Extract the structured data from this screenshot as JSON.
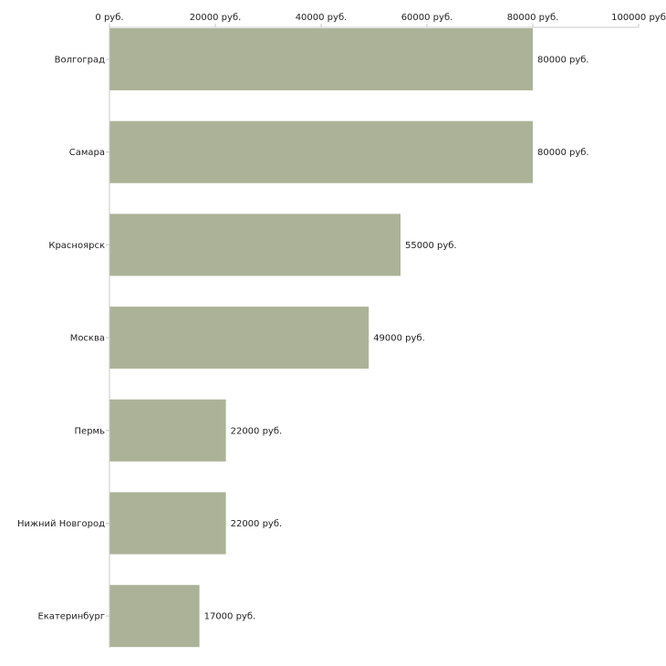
{
  "chart_data": {
    "type": "bar",
    "orientation": "horizontal",
    "categories": [
      "Волгоград",
      "Самара",
      "Красноярск",
      "Москва",
      "Пермь",
      "Нижний Новгород",
      "Екатеринбург"
    ],
    "values": [
      80000,
      80000,
      55000,
      49000,
      22000,
      22000,
      17000
    ],
    "value_labels": [
      "80000 руб.",
      "80000 руб.",
      "55000 руб.",
      "49000 руб.",
      "22000 руб.",
      "22000 руб.",
      "17000 руб."
    ],
    "x_ticks": [
      0,
      20000,
      40000,
      60000,
      80000,
      100000
    ],
    "x_tick_labels": [
      "0 руб.",
      "20000 руб.",
      "40000 руб.",
      "60000 руб.",
      "80000 руб.",
      "100000 руб"
    ],
    "xlim": [
      0,
      100000
    ],
    "axis_position": "top",
    "grid": false,
    "bar_color": "#acb297",
    "title": "",
    "xlabel": "",
    "ylabel": ""
  }
}
